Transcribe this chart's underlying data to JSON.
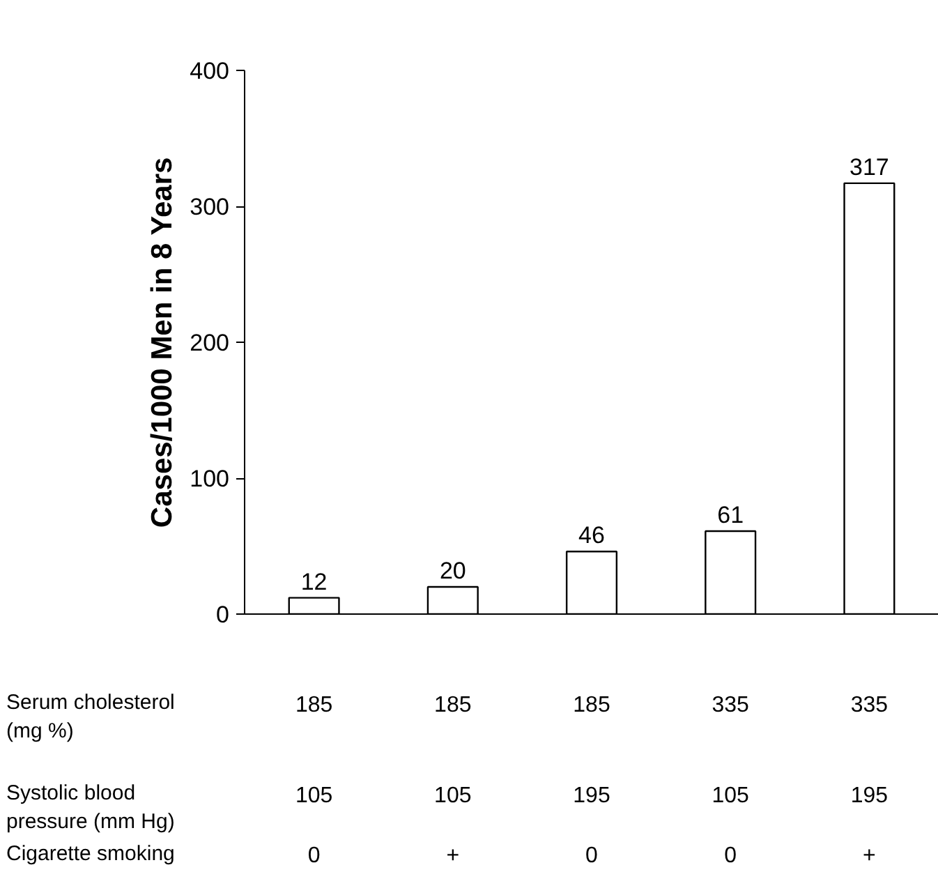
{
  "chart_data": {
    "type": "bar",
    "ylabel": "Cases/1000 Men in 8 Years",
    "categories": [
      "185\n105\n0",
      "185\n105\n+",
      "185\n195\n0",
      "335\n105\n0",
      "335\n195\n+"
    ],
    "values": [
      12,
      20,
      46,
      61,
      317
    ],
    "color": "#ffffff",
    "data_labels": true,
    "ylim": [
      0,
      400
    ],
    "yticks": [
      0,
      100,
      200,
      300,
      400
    ],
    "grid": false,
    "annotations": [
      "Serum cholesterol\n(mg %)",
      "Systolic blood\npressure (mm Hg)",
      "Cigarette smoking"
    ]
  }
}
